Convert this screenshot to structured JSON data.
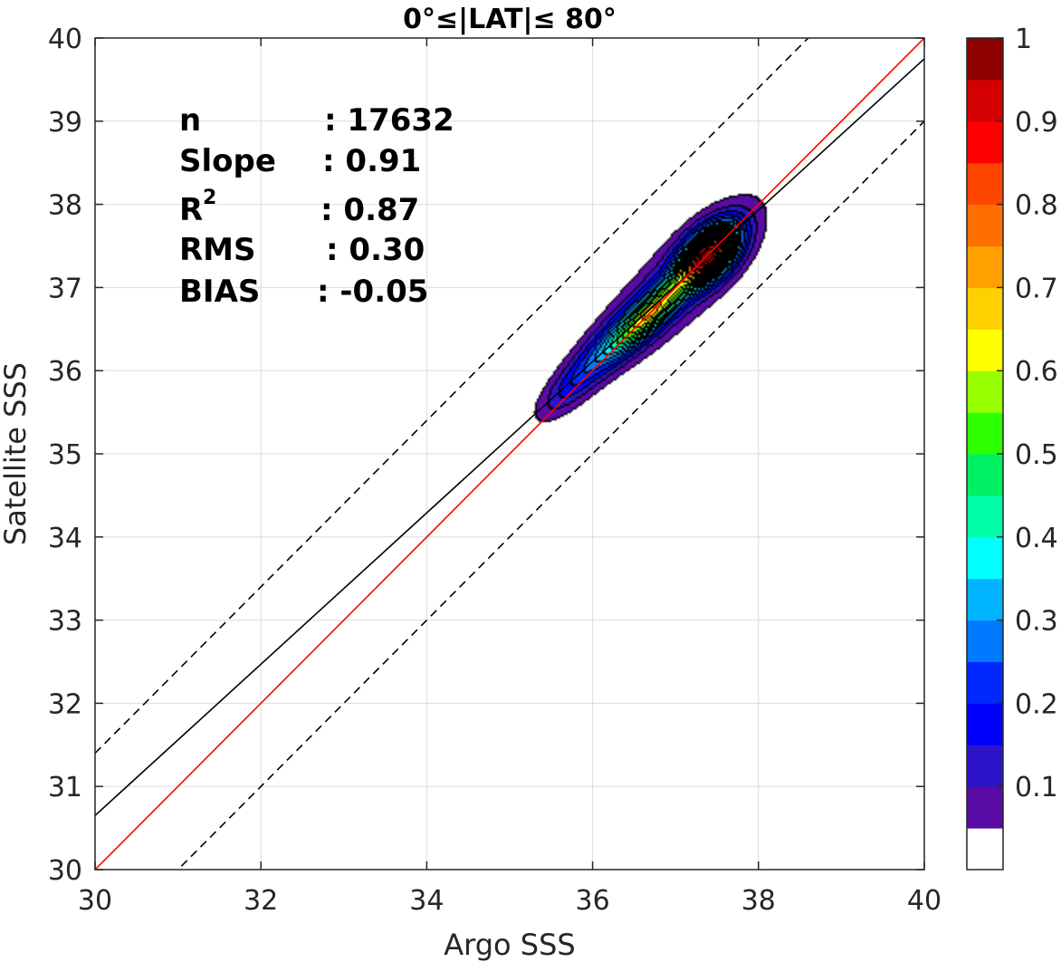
{
  "chart_data": {
    "type": "contour",
    "title": "0°≤|LAT|≤ 80°",
    "xlabel": "Argo SSS",
    "ylabel": "Satellite SSS",
    "xlim": [
      30,
      40
    ],
    "ylim": [
      30,
      40
    ],
    "xticks": [
      "30",
      "32",
      "34",
      "36",
      "38",
      "40"
    ],
    "yticks": [
      "30",
      "31",
      "32",
      "33",
      "34",
      "35",
      "36",
      "37",
      "38",
      "39",
      "40"
    ],
    "grid": true,
    "stats": [
      {
        "label": "n",
        "value": ": 17632"
      },
      {
        "label": "Slope",
        "value": ": 0.91"
      },
      {
        "label": "R",
        "sup": "2",
        "value": ": 0.87"
      },
      {
        "label": "RMS",
        "value": ": 0.30"
      },
      {
        "label": "BIAS",
        "value": ": -0.05"
      }
    ],
    "lines": {
      "one_to_one": {
        "slope": 1,
        "intercept": 0,
        "color": "#ff0000",
        "style": "solid"
      },
      "fit": {
        "slope": 0.91,
        "intercept": 3.35,
        "color": "#000000",
        "style": "solid"
      },
      "upper_band": {
        "slope": 1,
        "intercept": 1.4,
        "color": "#000000",
        "style": "dashed"
      },
      "lower_band": {
        "slope": 1,
        "intercept": -1.0,
        "color": "#000000",
        "style": "dashed"
      }
    },
    "density": {
      "angle_deg": 45,
      "blobs": [
        {
          "cx": 37.42,
          "cy": 37.4,
          "s1": 0.29,
          "s2": 0.17,
          "w": 1.0
        },
        {
          "cx": 36.75,
          "cy": 36.72,
          "s1": 0.45,
          "s2": 0.12,
          "w": 0.55
        },
        {
          "cx": 36.2,
          "cy": 36.3,
          "s1": 0.55,
          "s2": 0.15,
          "w": 0.25
        },
        {
          "cx": 37.05,
          "cy": 37.05,
          "s1": 0.85,
          "s2": 0.28,
          "w": 0.2
        },
        {
          "cx": 35.7,
          "cy": 35.75,
          "s1": 0.35,
          "s2": 0.14,
          "w": 0.1
        }
      ],
      "levels": [
        0.05,
        0.1,
        0.15,
        0.2,
        0.25,
        0.3,
        0.35,
        0.4,
        0.45,
        0.5,
        0.55,
        0.6,
        0.65,
        0.7,
        0.75,
        0.8,
        0.85,
        0.9,
        0.95
      ]
    },
    "colorbar": {
      "range": [
        0,
        1
      ],
      "ticks": [
        "0.1",
        "0.2",
        "0.3",
        "0.4",
        "0.5",
        "0.6",
        "0.7",
        "0.8",
        "0.9",
        "1"
      ],
      "tick_values": [
        0.1,
        0.2,
        0.3,
        0.4,
        0.5,
        0.6,
        0.7,
        0.8,
        0.9,
        1.0
      ],
      "colors": [
        "#ffffff",
        "#5a0aa5",
        "#2d14c8",
        "#0000ff",
        "#0028ff",
        "#0078ff",
        "#00b4ff",
        "#00ffff",
        "#00ffa8",
        "#00f064",
        "#2cff00",
        "#98ff00",
        "#ffff00",
        "#ffd000",
        "#ffa000",
        "#ff6e00",
        "#ff4600",
        "#ff0000",
        "#d20000",
        "#8c0000"
      ]
    }
  }
}
